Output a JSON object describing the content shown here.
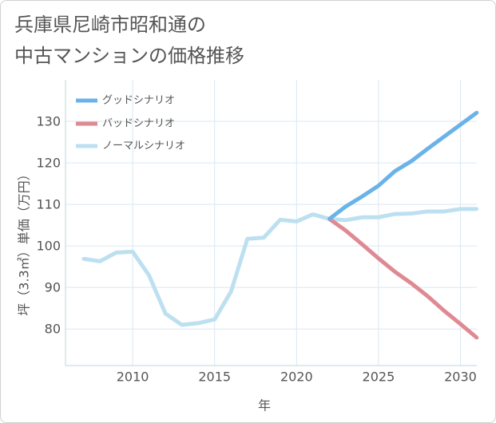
{
  "chart_data": {
    "type": "line",
    "title_lines": [
      "兵庫県尼崎市昭和通の",
      "中古マンションの価格推移"
    ],
    "xlabel": "年",
    "ylabel": "坪（3.3㎡）単価（万円）",
    "xlim": [
      2005.9,
      2031
    ],
    "ylim": [
      71.2,
      140
    ],
    "xticks": [
      2010,
      2015,
      2020,
      2025,
      2030
    ],
    "yticks": [
      80,
      90,
      100,
      110,
      120,
      130
    ],
    "grid": true,
    "legend_position": "top-left",
    "series": [
      {
        "name": "グッドシナリオ",
        "color": "#6ab3e9",
        "x": [
          2022,
          2023,
          2024,
          2025,
          2026,
          2027,
          2028,
          2029,
          2030,
          2031
        ],
        "values": [
          106.5,
          109.5,
          111.9,
          114.5,
          118.0,
          120.4,
          123.4,
          126.3,
          129.2,
          132.1
        ]
      },
      {
        "name": "バッドシナリオ",
        "color": "#df8a93",
        "x": [
          2022,
          2023,
          2024,
          2025,
          2026,
          2027,
          2028,
          2029,
          2030,
          2031
        ],
        "values": [
          106.5,
          103.7,
          100.4,
          97.0,
          93.8,
          91.0,
          87.9,
          84.4,
          81.2,
          77.9
        ]
      },
      {
        "name": "ノーマルシナリオ",
        "color": "#bde0f0",
        "x": [
          2007,
          2008,
          2009,
          2010,
          2011,
          2012,
          2013,
          2014,
          2015,
          2016,
          2017,
          2018,
          2019,
          2020,
          2021,
          2022,
          2023,
          2024,
          2025,
          2026,
          2027,
          2028,
          2029,
          2030,
          2031
        ],
        "values": [
          96.9,
          96.3,
          98.4,
          98.6,
          92.9,
          83.7,
          81.0,
          81.4,
          82.3,
          89.0,
          101.7,
          102.0,
          106.3,
          105.9,
          107.6,
          106.5,
          106.2,
          106.9,
          106.9,
          107.7,
          107.8,
          108.3,
          108.3,
          108.9,
          108.9
        ]
      }
    ]
  }
}
